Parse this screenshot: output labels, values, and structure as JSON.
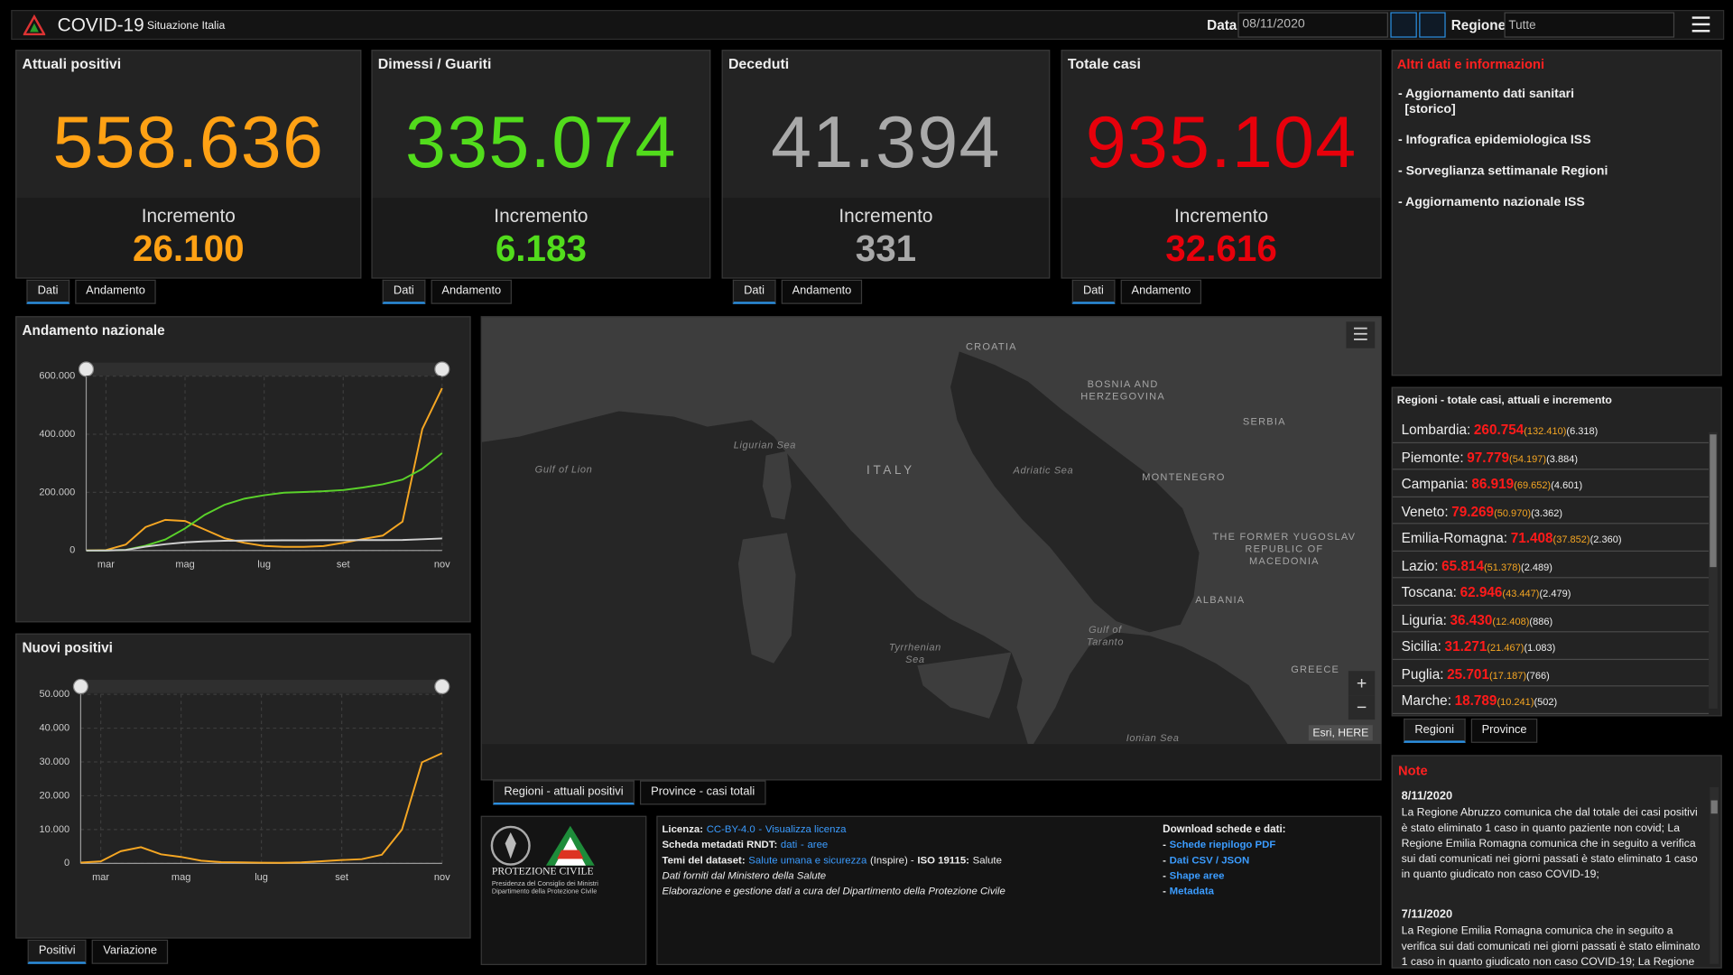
{
  "header": {
    "title": "COVID-19",
    "subtitle": "Situazione Italia",
    "date_label": "Data",
    "date": "08/11/2020",
    "region_label": "Regione",
    "region": "Tutte"
  },
  "kpis": [
    {
      "title": "Attuali positivi",
      "value": "558.636",
      "increment_label": "Incremento",
      "increment": "26.100",
      "color": "#ffa114",
      "tabs": [
        "Dati",
        "Andamento"
      ],
      "active_tab": 0
    },
    {
      "title": "Dimessi / Guariti",
      "value": "335.074",
      "increment_label": "Incremento",
      "increment": "6.183",
      "color": "#52dc1c",
      "tabs": [
        "Dati",
        "Andamento"
      ],
      "active_tab": 0
    },
    {
      "title": "Deceduti",
      "value": "41.394",
      "increment_label": "Incremento",
      "increment": "331",
      "color": "#a9a9a9",
      "tabs": [
        "Dati",
        "Andamento"
      ],
      "active_tab": 0
    },
    {
      "title": "Totale casi",
      "value": "935.104",
      "increment_label": "Incremento",
      "increment": "32.616",
      "color": "#e8000b",
      "tabs": [
        "Dati",
        "Andamento"
      ],
      "active_tab": 0
    }
  ],
  "info": {
    "title": "Altri dati e informazioni",
    "links": [
      [
        "- Aggiornamento dati sanitari",
        "[storico]"
      ],
      [
        "- Infografica epidemiologica ISS"
      ],
      [
        "- Sorveglianza settimanale Regioni"
      ],
      [
        "- Aggiornamento nazionale ISS"
      ]
    ]
  },
  "regions": {
    "title": "Regioni - totale casi, attuali e incremento",
    "rows": [
      {
        "name": "Lombardia:",
        "total": "260.754",
        "current": "(132.410)",
        "increment": "(6.318)"
      },
      {
        "name": "Piemonte:",
        "total": "97.779",
        "current": "(54.197)",
        "increment": "(3.884)"
      },
      {
        "name": "Campania:",
        "total": "86.919",
        "current": "(69.652)",
        "increment": "(4.601)"
      },
      {
        "name": "Veneto:",
        "total": "79.269",
        "current": "(50.970)",
        "increment": "(3.362)"
      },
      {
        "name": "Emilia-Romagna:",
        "total": "71.408",
        "current": "(37.852)",
        "increment": "(2.360)"
      },
      {
        "name": "Lazio:",
        "total": "65.814",
        "current": "(51.378)",
        "increment": "(2.489)"
      },
      {
        "name": "Toscana:",
        "total": "62.946",
        "current": "(43.447)",
        "increment": "(2.479)"
      },
      {
        "name": "Liguria:",
        "total": "36.430",
        "current": "(12.408)",
        "increment": "(886)"
      },
      {
        "name": "Sicilia:",
        "total": "31.271",
        "current": "(21.467)",
        "increment": "(1.083)"
      },
      {
        "name": "Puglia:",
        "total": "25.701",
        "current": "(17.187)",
        "increment": "(766)"
      },
      {
        "name": "Marche:",
        "total": "18.789",
        "current": "(10.241)",
        "increment": "(502)"
      }
    ],
    "tabs": [
      "Regioni",
      "Province"
    ],
    "active_tab": 0
  },
  "notes": {
    "title": "Note",
    "entries": [
      {
        "date": "8/11/2020",
        "text": "La Regione Abruzzo comunica che dal totale dei casi positivi è stato eliminato 1 caso in quanto paziente non covid; La Regione Emilia Romagna comunica che in seguito a verifica sui dati comunicati nei giorni passati è stato eliminato 1 caso in quanto giudicato non caso COVID-19;"
      },
      {
        "date": "7/11/2020",
        "text": "La Regione Emilia Romagna comunica che in seguito a verifica sui dati comunicati nei giorni passati è stato eliminato 1 caso in quanto giudicato non caso COVID-19; La Regione"
      }
    ]
  },
  "map": {
    "labels": [
      [
        "CROATIA"
      ],
      [
        "BOSNIA AND",
        "HERZEGOVINA"
      ],
      [
        "SERBIA"
      ],
      [
        "ITALY"
      ],
      [
        "Ligurian Sea"
      ],
      [
        "Gulf of Lion"
      ],
      [
        "Adriatic Sea"
      ],
      [
        "MONTENEGRO"
      ],
      [
        "THE FORMER YUGOSLAV",
        "REPUBLIC OF",
        "MACEDONIA"
      ],
      [
        "ALBANIA"
      ],
      [
        "Gulf of",
        "Taranto"
      ],
      [
        "Tyrrhenian",
        "Sea"
      ],
      [
        "GREECE"
      ],
      [
        "Ionian Sea"
      ]
    ],
    "attribution": "Esri, HERE",
    "zoom_in": "+",
    "zoom_out": "−",
    "tabs": [
      "Regioni - attuali positivi",
      "Province - casi totali"
    ],
    "active_tab": 0
  },
  "logo": {
    "name": "PROTEZIONE CIVILE",
    "line1": "Presidenza del Consiglio dei Ministri",
    "line2": "Dipartimento della Protezione Civile"
  },
  "footer": {
    "lines": [
      [
        {
          "text": "Licenza:",
          "bold": true
        },
        {
          "text": "CC-BY-4.0",
          "link": true
        },
        {
          "text": "-",
          "link": true
        },
        {
          "text": "Visualizza licenza",
          "link": true
        }
      ],
      [
        {
          "text": "Scheda metadati RNDT:",
          "bold": true
        },
        {
          "text": "dati",
          "link": true
        },
        {
          "text": "-",
          "link": true
        },
        {
          "text": "aree",
          "link": true
        }
      ],
      [
        {
          "text": "Temi del dataset:",
          "bold": true
        },
        {
          "text": "Salute umana e sicurezza",
          "link": true
        },
        {
          "text": "(Inspire) -"
        },
        {
          "text": "ISO 19115:",
          "bold": true
        },
        {
          "text": "Salute"
        }
      ],
      [
        {
          "text": "Dati forniti dal Ministero della Salute",
          "italic": true
        }
      ],
      [
        {
          "text": "Elaborazione e gestione dati a cura del Dipartimento della Protezione Civile",
          "italic": true
        }
      ]
    ],
    "download_title": "Download schede e dati:",
    "downloads": [
      {
        "dash": "-",
        "link": "Schede riepilogo PDF"
      },
      {
        "dash": "-",
        "link": "Dati CSV / JSON"
      },
      {
        "dash": "-",
        "link": "Shape aree"
      },
      {
        "dash": "-",
        "link": "Metadata"
      }
    ]
  },
  "chart_tabs": {
    "tabs": [
      "Positivi",
      "Variazione"
    ],
    "active_tab": 0
  },
  "chart_data": [
    {
      "type": "line",
      "title": "Andamento nazionale",
      "categories": [
        null,
        "mar",
        null,
        null,
        null,
        "mag",
        null,
        null,
        null,
        "lug",
        null,
        null,
        null,
        "set",
        null,
        null,
        null,
        null,
        "nov"
      ],
      "series": [
        {
          "color": "#f5a623",
          "values": [
            221,
            1577,
            20603,
            80572,
            105418,
            101551,
            72070,
            42075,
            26274,
            15563,
            12493,
            12456,
            15089,
            26754,
            39712,
            51263,
            99266,
            418142,
            558636
          ]
        },
        {
          "color": "#5ad12a",
          "values": [
            1,
            83,
            2335,
            16847,
            38092,
            75945,
            122810,
            157507,
            178526,
            190248,
            198756,
            201323,
            203968,
            207944,
            216915,
            227704,
            244065,
            281151,
            335074
          ]
        },
        {
          "color": "#cfcfcf",
          "values": [
            7,
            34,
            1809,
            13155,
            21645,
            28236,
            31610,
            33475,
            34371,
            34767,
            34997,
            35146,
            35234,
            35483,
            35633,
            35918,
            36289,
            38826,
            41394
          ]
        }
      ],
      "ylim": [
        0,
        620000
      ],
      "yticks": [
        0,
        {
          "value": 200000,
          "label": "200.000"
        },
        {
          "value": 400000,
          "label": "400.000"
        },
        {
          "value": 600000,
          "label": "600.000"
        }
      ],
      "grid": true
    },
    {
      "type": "line",
      "title": "Nuovi positivi",
      "categories": [
        null,
        "mar",
        null,
        null,
        null,
        "mag",
        null,
        null,
        null,
        "lug",
        null,
        null,
        null,
        "set",
        null,
        null,
        null,
        null,
        "nov"
      ],
      "series": [
        {
          "color": "#f5a623",
          "values": [
            221,
            573,
            3590,
            4782,
            2667,
            1900,
            789,
            355,
            301,
            187,
            162,
            295,
            629,
            996,
            1229,
            2548,
            10010,
            29907,
            32616
          ]
        }
      ],
      "ylim": [
        0,
        52000
      ],
      "yticks": [
        0,
        {
          "value": 10000,
          "label": "10.000"
        },
        {
          "value": 20000,
          "label": "20.000"
        },
        {
          "value": 30000,
          "label": "30.000"
        },
        {
          "value": 40000,
          "label": "40.000"
        },
        {
          "value": 50000,
          "label": "50.000"
        }
      ],
      "grid": true
    }
  ]
}
